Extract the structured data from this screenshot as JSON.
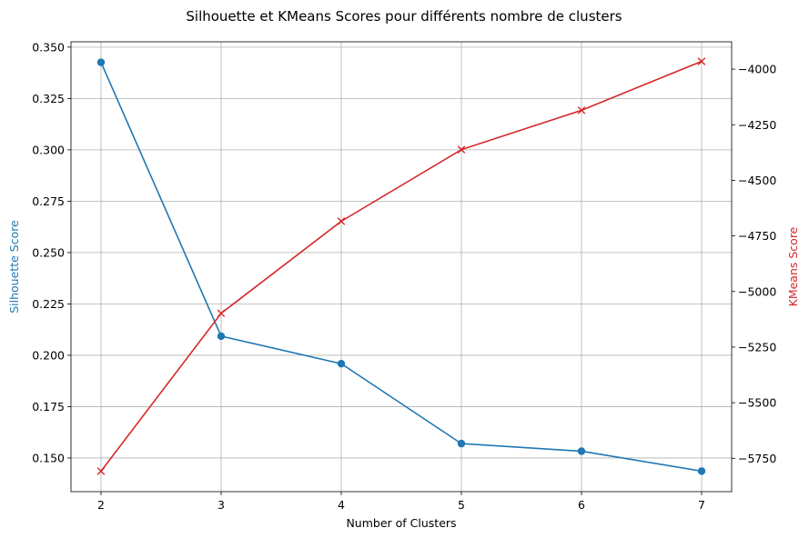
{
  "chart_data": {
    "type": "line",
    "title": "Silhouette et KMeans Scores pour différents nombre de clusters",
    "xlabel": "Number of Clusters",
    "x": [
      2,
      3,
      4,
      5,
      6,
      7
    ],
    "xlim": [
      1.75,
      7.25
    ],
    "xticks": [
      "2",
      "3",
      "4",
      "5",
      "6",
      "7"
    ],
    "grid": true,
    "series": [
      {
        "name": "Silhouette Score",
        "axis": "left",
        "color": "#1f77b4",
        "marker": "circle",
        "values": [
          0.3426,
          0.2093,
          0.1959,
          0.157,
          0.1533,
          0.1436
        ],
        "ylabel": "Silhouette Score",
        "ylim": [
          0.1336,
          0.3526
        ],
        "ytick_values": [
          0.15,
          0.175,
          0.2,
          0.225,
          0.25,
          0.275,
          0.3,
          0.325,
          0.35
        ],
        "ytick_labels": [
          "0.150",
          "0.175",
          "0.200",
          "0.225",
          "0.250",
          "0.275",
          "0.300",
          "0.325",
          "0.350"
        ]
      },
      {
        "name": "KMeans Score",
        "axis": "right",
        "color": "#d62728",
        "marker": "x",
        "values": [
          -5808,
          -5098,
          -4684,
          -4362,
          -4185,
          -3965
        ],
        "ylabel": "KMeans Score",
        "ylim": [
          -5900,
          -3877
        ],
        "ytick_values": [
          -5750,
          -5500,
          -5250,
          -5000,
          -4750,
          -4500,
          -4250,
          -4000
        ],
        "ytick_labels": [
          "−5750",
          "−5500",
          "−5250",
          "−5000",
          "−4750",
          "−4500",
          "−4250",
          "−4000"
        ]
      }
    ]
  }
}
